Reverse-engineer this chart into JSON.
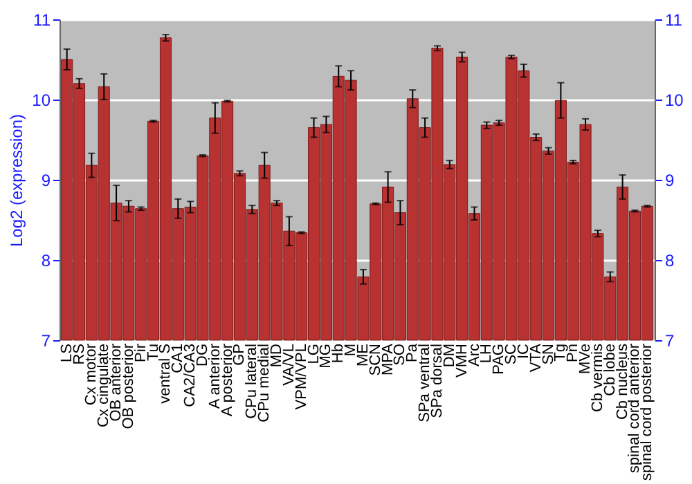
{
  "chart_data": {
    "type": "bar",
    "ylabel": "Log2 (expression)",
    "categories": [
      "LS",
      "RS",
      "Cx motor",
      "Cx cingulate",
      "OB anterior",
      "OB posterior",
      "Pir",
      "Tu",
      "ventral S",
      "CA1",
      "CA2/CA3",
      "DG",
      "A anterior",
      "A posterior",
      "GP",
      "CPu lateral",
      "CPu medial",
      "MD",
      "VA/VL",
      "VPM/VPL",
      "LG",
      "MG",
      "Hb",
      "M",
      "ME",
      "SCN",
      "MPA",
      "SO",
      "Pa",
      "SPa ventral",
      "SPa dorsal",
      "DM",
      "VMH",
      "Arc",
      "LH",
      "PAG",
      "SC",
      "IC",
      "VTA",
      "SN",
      "Tg",
      "Pn",
      "MVe",
      "Cb vermis",
      "Cb lobe",
      "Cb nucleus",
      "spinal cord anterior",
      "spinal cord posterior"
    ],
    "values": [
      10.5,
      10.2,
      9.18,
      10.16,
      8.71,
      8.67,
      8.64,
      9.73,
      10.77,
      8.64,
      8.66,
      9.3,
      9.77,
      9.98,
      9.08,
      8.63,
      9.18,
      8.71,
      8.36,
      8.34,
      9.65,
      9.69,
      10.29,
      10.24,
      7.79,
      8.7,
      8.91,
      8.59,
      10.01,
      9.65,
      10.64,
      9.19,
      10.53,
      8.58,
      9.68,
      9.71,
      10.53,
      10.36,
      9.53,
      9.36,
      9.99,
      9.22,
      9.69,
      8.33,
      7.79,
      8.91,
      8.61,
      8.67
    ],
    "errors": [
      0.13,
      0.06,
      0.15,
      0.16,
      0.22,
      0.07,
      0.02,
      0.01,
      0.04,
      0.12,
      0.07,
      0.01,
      0.19,
      0.01,
      0.03,
      0.05,
      0.16,
      0.03,
      0.18,
      0.01,
      0.12,
      0.1,
      0.13,
      0.12,
      0.09,
      0.01,
      0.19,
      0.15,
      0.11,
      0.12,
      0.03,
      0.05,
      0.06,
      0.08,
      0.04,
      0.03,
      0.02,
      0.08,
      0.04,
      0.04,
      0.22,
      0.02,
      0.07,
      0.04,
      0.06,
      0.15,
      0.01,
      0.01
    ],
    "color": "#b83232",
    "ylim": [
      7,
      11
    ],
    "yticks": [
      7,
      8,
      9,
      10,
      11
    ],
    "y2lim": [
      7,
      11
    ],
    "y2ticks": [
      7,
      8,
      9,
      10,
      11
    ],
    "grid": "y"
  }
}
